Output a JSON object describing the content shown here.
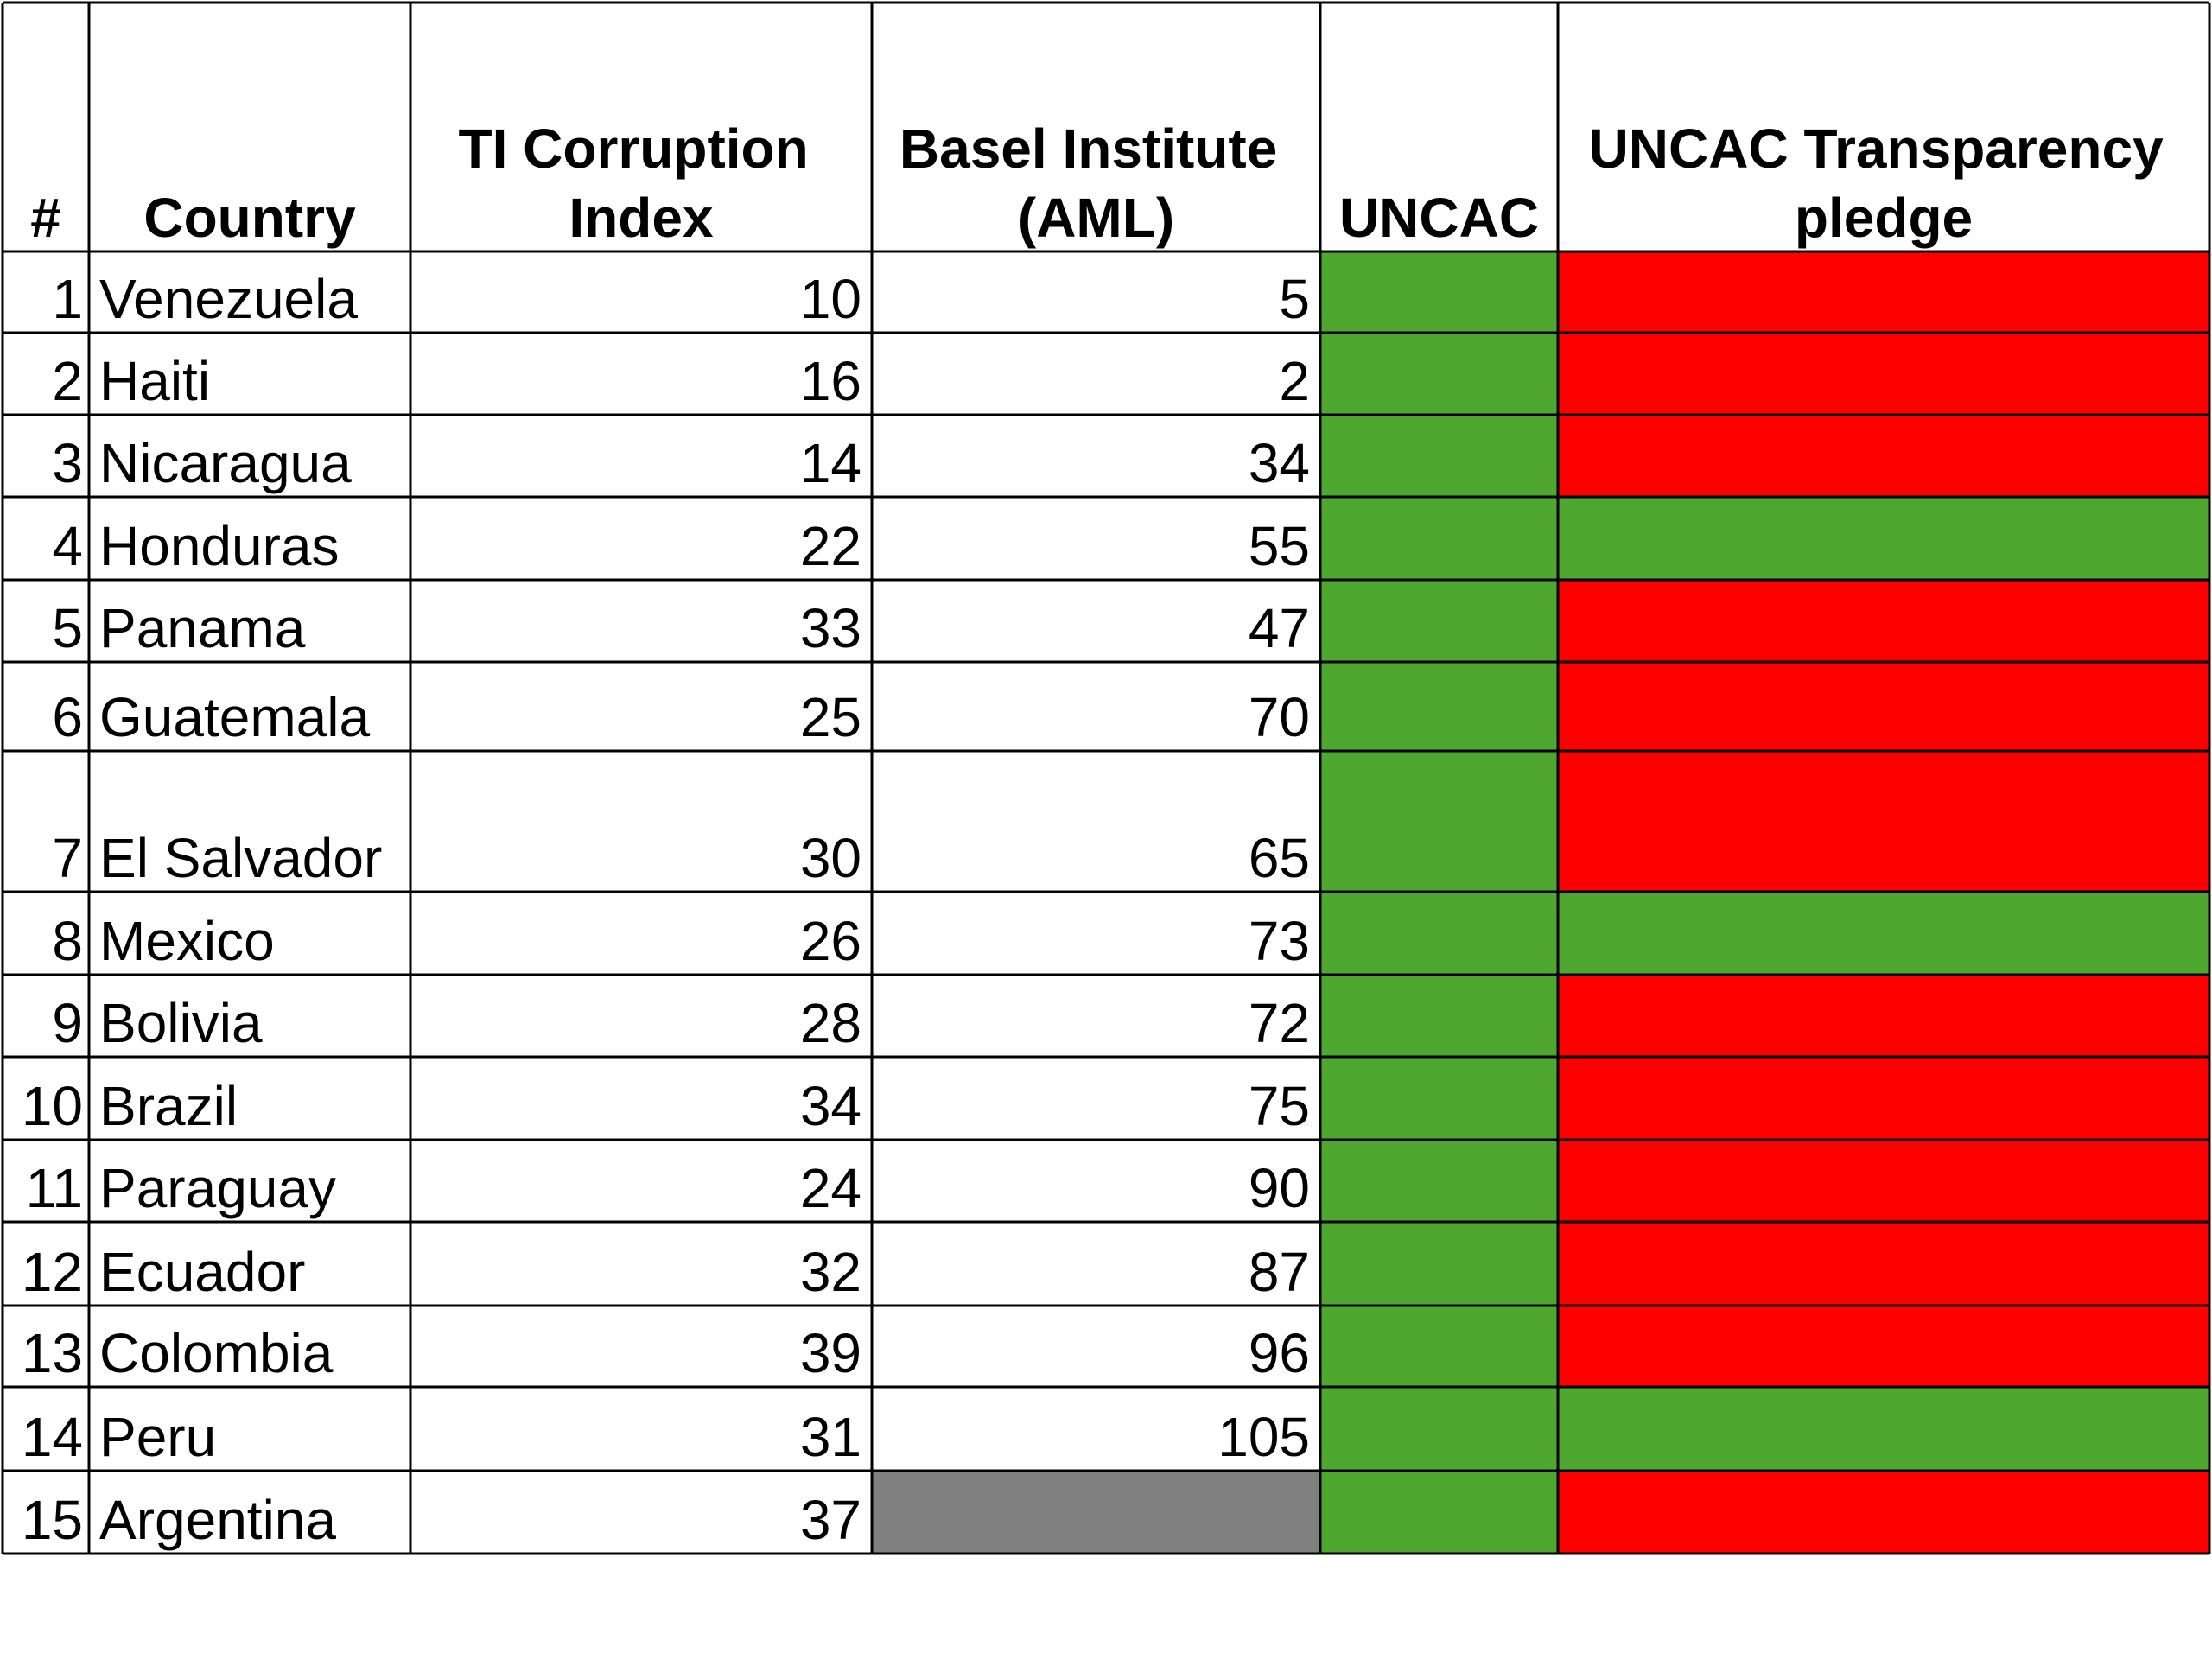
{
  "table": {
    "headers": [
      "#",
      "Country",
      "TI Corruption Index",
      "Basel Institute (AML)",
      "UNCAC",
      "UNCAC Transparency pledge"
    ],
    "missing_color": "#808080",
    "rows": [
      {
        "num": 1,
        "country": "Venezuela",
        "ti": 10,
        "basel": 5,
        "uncac": "#4ea72e",
        "pledge": "#ff0000"
      },
      {
        "num": 2,
        "country": "Haiti",
        "ti": 16,
        "basel": 2,
        "uncac": "#4ea72e",
        "pledge": "#ff0000"
      },
      {
        "num": 3,
        "country": "Nicaragua",
        "ti": 14,
        "basel": 34,
        "uncac": "#4ea72e",
        "pledge": "#ff0000"
      },
      {
        "num": 4,
        "country": "Honduras",
        "ti": 22,
        "basel": 55,
        "uncac": "#4ea72e",
        "pledge": "#4ea72e"
      },
      {
        "num": 5,
        "country": "Panama",
        "ti": 33,
        "basel": 47,
        "uncac": "#4ea72e",
        "pledge": "#ff0000"
      },
      {
        "num": 6,
        "country": "Guatemala",
        "ti": 25,
        "basel": 70,
        "uncac": "#4ea72e",
        "pledge": "#ff0000"
      },
      {
        "num": 7,
        "country": "El Salvador",
        "ti": 30,
        "basel": 65,
        "uncac": "#4ea72e",
        "pledge": "#ff0000"
      },
      {
        "num": 8,
        "country": "Mexico",
        "ti": 26,
        "basel": 73,
        "uncac": "#4ea72e",
        "pledge": "#4ea72e"
      },
      {
        "num": 9,
        "country": "Bolivia",
        "ti": 28,
        "basel": 72,
        "uncac": "#4ea72e",
        "pledge": "#ff0000"
      },
      {
        "num": 10,
        "country": "Brazil",
        "ti": 34,
        "basel": 75,
        "uncac": "#4ea72e",
        "pledge": "#ff0000"
      },
      {
        "num": 11,
        "country": "Paraguay",
        "ti": 24,
        "basel": 90,
        "uncac": "#4ea72e",
        "pledge": "#ff0000"
      },
      {
        "num": 12,
        "country": "Ecuador",
        "ti": 32,
        "basel": 87,
        "uncac": "#4ea72e",
        "pledge": "#ff0000"
      },
      {
        "num": 13,
        "country": "Colombia",
        "ti": 39,
        "basel": 96,
        "uncac": "#4ea72e",
        "pledge": "#ff0000"
      },
      {
        "num": 14,
        "country": "Peru",
        "ti": 31,
        "basel": 105,
        "uncac": "#4ea72e",
        "pledge": "#4ea72e"
      },
      {
        "num": 15,
        "country": "Argentina",
        "ti": 37,
        "basel": null,
        "uncac": "#4ea72e",
        "pledge": "#ff0000"
      }
    ]
  }
}
